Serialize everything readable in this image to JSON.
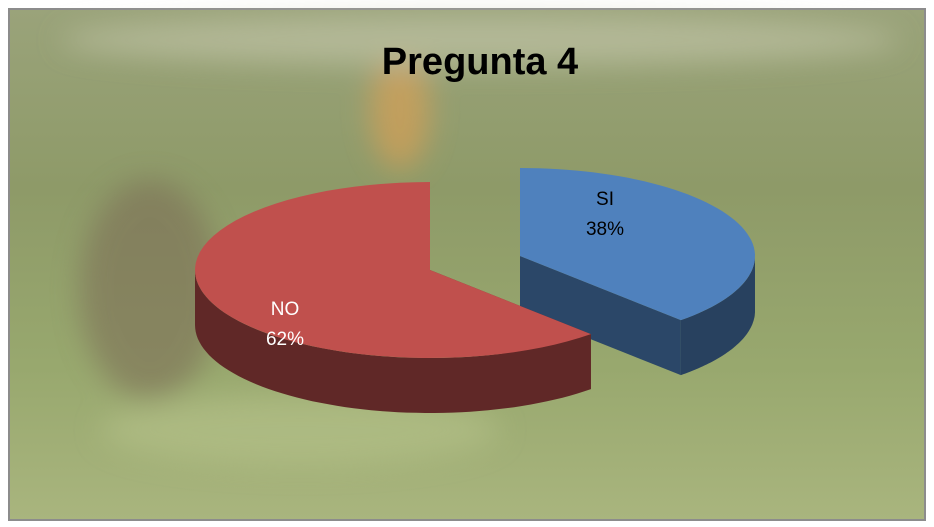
{
  "chart_data": {
    "type": "pie",
    "title": "Pregunta 4",
    "categories": [
      "SI",
      "NO"
    ],
    "values": [
      38,
      62
    ],
    "value_labels": [
      "38%",
      "62%"
    ],
    "colors": [
      "#4f81bd",
      "#c0504d"
    ]
  }
}
